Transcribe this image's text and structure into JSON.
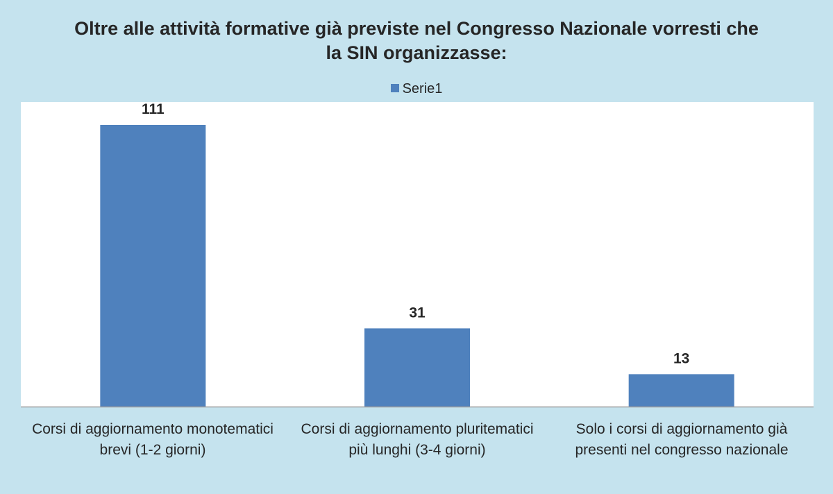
{
  "chart_data": {
    "type": "bar",
    "title_lines": [
      "Oltre alle attività formative già previste nel Congresso Nazionale vorresti che",
      "la SIN organizzasse:"
    ],
    "legend": {
      "position": "top",
      "label": "Serie1"
    },
    "series": [
      {
        "name": "Serie1",
        "color": "#4f81bd",
        "values": [
          111,
          31,
          13
        ]
      }
    ],
    "categories": [
      [
        "Corsi di aggiornamento monotematici",
        "brevi (1-2 giorni)"
      ],
      [
        "Corsi di aggiornamento pluritematici",
        "più lunghi (3-4 giorni)"
      ],
      [
        "Solo i corsi di aggiornamento già",
        "presenti nel congresso nazionale"
      ]
    ],
    "data_labels": [
      "111",
      "31",
      "13"
    ],
    "ylim": [
      0,
      120
    ],
    "grid": false,
    "axis_line_color": "#a0a0a0"
  }
}
